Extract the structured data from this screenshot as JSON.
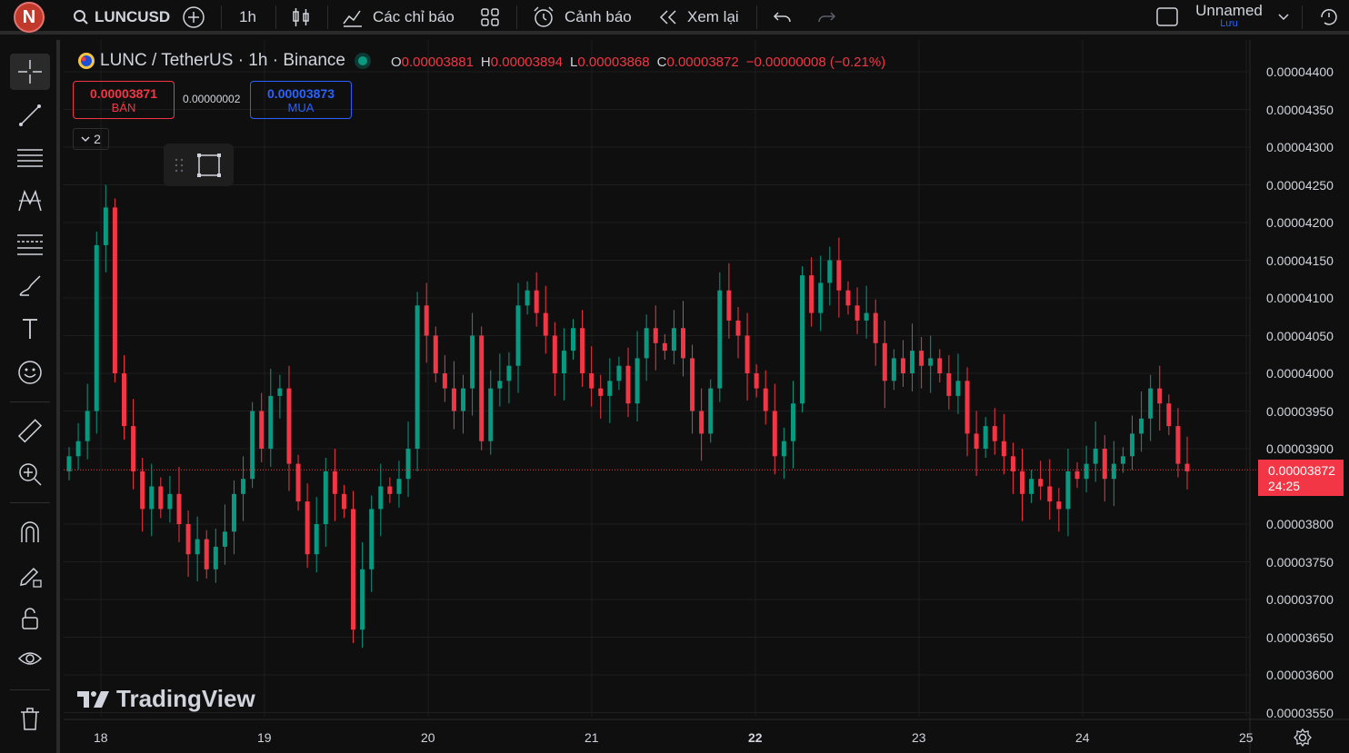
{
  "topbar": {
    "avatar_letter": "N",
    "symbol": "LUNCUSD",
    "interval": "1h",
    "indicators_label": "Các chỉ báo",
    "alerts_label": "Cảnh báo",
    "replay_label": "Xem lại",
    "layout_name": "Unnamed",
    "save_label": "Lưu"
  },
  "legend": {
    "title": "LUNC / TetherUS · 1h · Binance",
    "o_label": "O",
    "o": "0.00003881",
    "h_label": "H",
    "h": "0.00003894",
    "l_label": "L",
    "l": "0.00003868",
    "c_label": "C",
    "c": "0.00003872",
    "change": "−0.00000008 (−0.21%)"
  },
  "trade": {
    "sell_price": "0.00003871",
    "sell_label": "BÁN",
    "spread": "0.00000002",
    "buy_price": "0.00003873",
    "buy_label": "MUA",
    "collapse_count": "2"
  },
  "price_tag": {
    "price": "0.00003872",
    "countdown": "24:25"
  },
  "brand": "TradingView",
  "colors": {
    "up": "#089981",
    "down": "#f23645",
    "bg": "#0f0f0f",
    "grid": "#1e1e1e",
    "buy": "#2962ff"
  },
  "y_axis_labels": [
    "0.00004400",
    "0.00004350",
    "0.00004300",
    "0.00004250",
    "0.00004200",
    "0.00004150",
    "0.00004100",
    "0.00004050",
    "0.00004000",
    "0.00003950",
    "0.00003900",
    "0.00003800",
    "0.00003750",
    "0.00003700",
    "0.00003650",
    "0.00003600",
    "0.00003550"
  ],
  "x_axis_labels": [
    "18",
    "19",
    "20",
    "21",
    "22",
    "23",
    "24",
    "25"
  ],
  "chart_data": {
    "type": "candlestick",
    "y_range": [
      3.55e-05,
      4.4e-05
    ],
    "note_open_close": "values shown are closing prices, approximate",
    "closes": [
      3.89,
      3.91,
      3.95,
      4.17,
      4.22,
      4.0,
      3.93,
      3.87,
      3.82,
      3.85,
      3.82,
      3.84,
      3.8,
      3.76,
      3.78,
      3.74,
      3.77,
      3.79,
      3.84,
      3.86,
      3.95,
      3.9,
      3.97,
      3.98,
      3.88,
      3.83,
      3.76,
      3.8,
      3.87,
      3.84,
      3.82,
      3.66,
      3.74,
      3.82,
      3.85,
      3.84,
      3.86,
      3.9,
      4.09,
      4.05,
      4.0,
      3.98,
      3.95,
      3.98,
      4.05,
      3.91,
      3.98,
      3.99,
      4.01,
      4.09,
      4.11,
      4.08,
      4.05,
      4.0,
      4.03,
      4.06,
      4.0,
      3.98,
      3.97,
      3.99,
      4.01,
      3.96,
      4.02,
      4.06,
      4.04,
      4.03,
      4.06,
      4.02,
      3.95,
      3.92,
      3.98,
      4.11,
      4.07,
      4.05,
      4.0,
      3.98,
      3.95,
      3.89,
      3.91,
      3.96,
      4.13,
      4.08,
      4.12,
      4.15,
      4.11,
      4.09,
      4.07,
      4.08,
      4.04,
      3.99,
      4.02,
      4.0,
      4.03,
      4.01,
      4.02,
      4.0,
      3.97,
      3.99,
      3.92,
      3.9,
      3.93,
      3.91,
      3.89,
      3.87,
      3.84,
      3.86,
      3.85,
      3.83,
      3.82,
      3.87,
      3.86,
      3.88,
      3.9,
      3.86,
      3.88,
      3.89,
      3.92,
      3.94,
      3.98,
      3.96,
      3.93,
      3.88,
      3.87
    ]
  }
}
